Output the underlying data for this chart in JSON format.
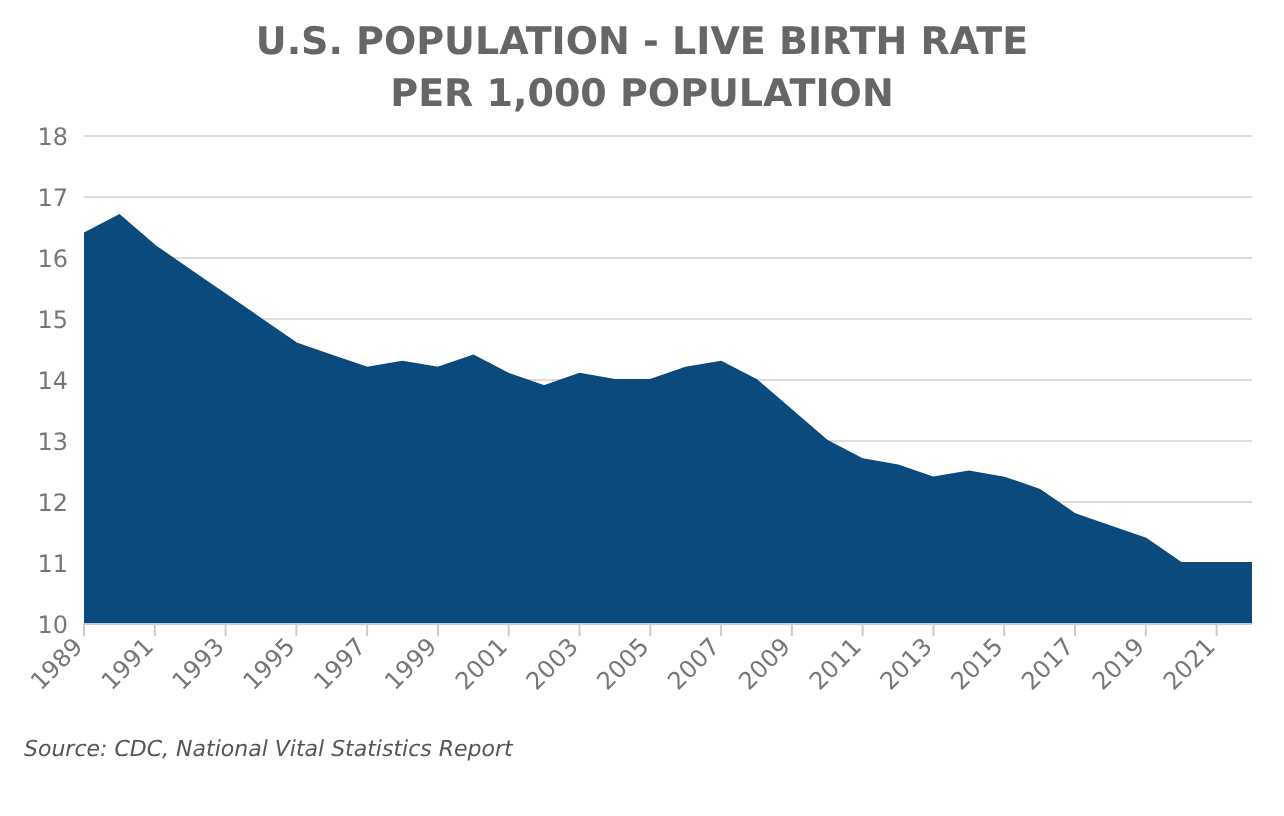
{
  "chart_data": {
    "type": "area",
    "title": "U.S. POPULATION - LIVE BIRTH RATE\nPER 1,000 POPULATION",
    "x": [
      1989,
      1990,
      1991,
      1992,
      1993,
      1994,
      1995,
      1996,
      1997,
      1998,
      1999,
      2000,
      2001,
      2002,
      2003,
      2004,
      2005,
      2006,
      2007,
      2008,
      2009,
      2010,
      2011,
      2012,
      2013,
      2014,
      2015,
      2016,
      2017,
      2018,
      2019,
      2020,
      2021,
      2022
    ],
    "series": [
      {
        "color": "#0b4a7d",
        "values": [
          16.4,
          16.7,
          16.2,
          15.8,
          15.4,
          15.0,
          14.6,
          14.4,
          14.2,
          14.3,
          14.2,
          14.4,
          14.1,
          13.9,
          14.1,
          14.0,
          14.0,
          14.2,
          14.3,
          14.0,
          13.5,
          13.0,
          12.7,
          12.6,
          12.4,
          12.5,
          12.4,
          12.2,
          11.8,
          11.6,
          11.4,
          11.0,
          11.0,
          11.0
        ]
      }
    ],
    "xlim": [
      1989,
      2022
    ],
    "xticks": [
      1989,
      1991,
      1993,
      1995,
      1997,
      1999,
      2001,
      2003,
      2005,
      2007,
      2009,
      2011,
      2013,
      2015,
      2017,
      2019,
      2021
    ],
    "ylim": [
      10,
      18
    ],
    "yticks": [
      10,
      11,
      12,
      13,
      14,
      15,
      16,
      17,
      18
    ],
    "grid": "y",
    "legend": false,
    "annotations": [
      "Source: CDC, National Vital Statistics Report"
    ]
  }
}
